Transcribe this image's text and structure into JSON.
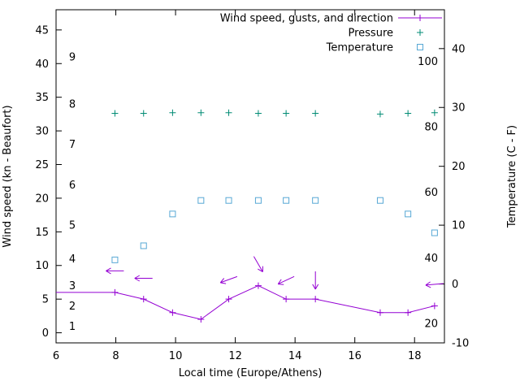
{
  "chart_data": {
    "type": "line",
    "title": "",
    "xlabel": "Local time (Europe/Athens)",
    "ylabel_left": "Wind speed (kn - Beaufort)",
    "ylabel_right": "Temperature (C - F)",
    "x_range": [
      6,
      19
    ],
    "y_left_range": [
      -1.5,
      48
    ],
    "y_right_range": [
      -10,
      46.6
    ],
    "x_ticks": [
      6,
      8,
      10,
      12,
      14,
      16,
      18
    ],
    "y_left_ticks": [
      0,
      5,
      10,
      15,
      20,
      25,
      30,
      35,
      40,
      45
    ],
    "y_right_ticks": [
      -10,
      0,
      10,
      20,
      30,
      40
    ],
    "grid": false,
    "legend_position": "top-right-inside",
    "beaufort_scale_labels": [
      {
        "label": "1",
        "kn": 1
      },
      {
        "label": "2",
        "kn": 4
      },
      {
        "label": "3",
        "kn": 7
      },
      {
        "label": "4",
        "kn": 11
      },
      {
        "label": "5",
        "kn": 16
      },
      {
        "label": "6",
        "kn": 22
      },
      {
        "label": "7",
        "kn": 28
      },
      {
        "label": "8",
        "kn": 34
      },
      {
        "label": "9",
        "kn": 41
      }
    ],
    "fahrenheit_scale_labels": [
      {
        "label": "20",
        "c": -6.7
      },
      {
        "label": "40",
        "c": 4.4
      },
      {
        "label": "60",
        "c": 15.6
      },
      {
        "label": "80",
        "c": 26.7
      },
      {
        "label": "100",
        "c": 37.8
      }
    ],
    "series": [
      {
        "name": "Wind speed, gusts, and direction",
        "type": "line",
        "marker": "plus",
        "color": "#9400D3",
        "axis": "left",
        "markers_from_index": 1,
        "x": [
          6,
          7.97,
          8.93,
          9.9,
          10.85,
          11.78,
          12.77,
          13.7,
          14.68,
          16.85,
          17.78,
          18.67
        ],
        "y": [
          6,
          6,
          5,
          3,
          2,
          5,
          7,
          5,
          5,
          3,
          3,
          4
        ]
      },
      {
        "name": "Pressure",
        "type": "points",
        "marker": "plus",
        "color": "#008B74",
        "axis": "left",
        "x": [
          7.97,
          8.93,
          9.9,
          10.85,
          11.78,
          12.77,
          13.7,
          14.68,
          16.85,
          17.78,
          18.67
        ],
        "y": [
          32.6,
          32.6,
          32.7,
          32.7,
          32.7,
          32.6,
          32.6,
          32.6,
          32.5,
          32.6,
          32.7
        ]
      },
      {
        "name": "Temperature",
        "type": "points",
        "marker": "open-square",
        "color": "#57A8D5",
        "axis": "right",
        "x": [
          7.97,
          8.93,
          9.9,
          10.85,
          11.78,
          12.77,
          13.7,
          14.68,
          16.85,
          17.78,
          18.67
        ],
        "y": [
          4.1,
          6.5,
          11.9,
          14.2,
          14.2,
          14.2,
          14.2,
          14.2,
          14.2,
          11.9,
          8.7
        ]
      }
    ],
    "wind_direction_arrows": [
      {
        "x": 7.97,
        "kn": 9.2,
        "angle_deg": 180
      },
      {
        "x": 8.93,
        "kn": 8.1,
        "angle_deg": 180
      },
      {
        "x": 11.78,
        "kn": 7.9,
        "angle_deg": 200
      },
      {
        "x": 12.77,
        "kn": 10.2,
        "angle_deg": 300
      },
      {
        "x": 13.7,
        "kn": 7.8,
        "angle_deg": 205
      },
      {
        "x": 14.68,
        "kn": 7.8,
        "angle_deg": 270
      },
      {
        "x": 18.67,
        "kn": 7.2,
        "angle_deg": 185
      }
    ],
    "colors": {
      "wind": "#9400D3",
      "pressure": "#008B74",
      "temperature": "#57A8D5",
      "axis": "#000000",
      "background": "#FFFFFF"
    }
  }
}
